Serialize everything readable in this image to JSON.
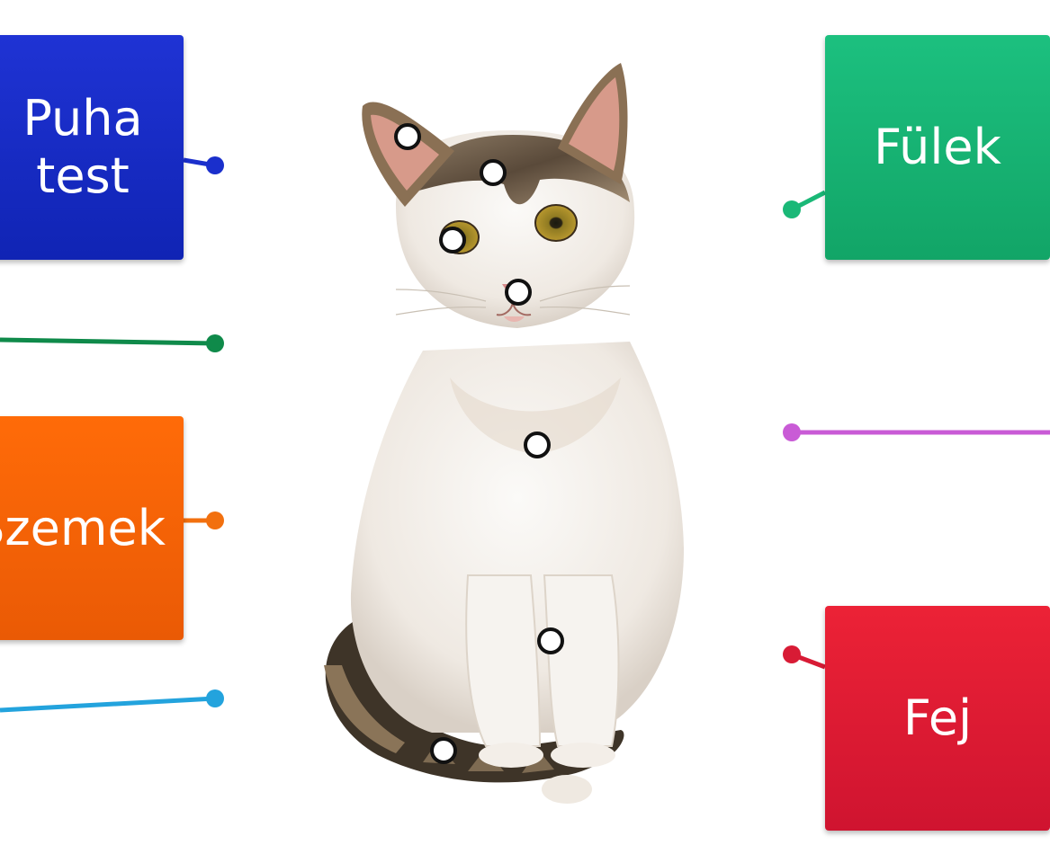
{
  "labels": {
    "puha_test": "Puha\ntest",
    "szemek": "Szemek",
    "fulek": "Fülek",
    "fej": "Fej"
  },
  "colors": {
    "blue": "#1a2fcc",
    "green_dark": "#0f8a4a",
    "orange": "#f2700f",
    "light_blue": "#23a3dd",
    "green": "#1ab877",
    "purple": "#c95bd6",
    "red": "#d81b35",
    "hotspot_stroke": "#111111",
    "hotspot_fill": "#ffffff"
  },
  "subject": "cat"
}
